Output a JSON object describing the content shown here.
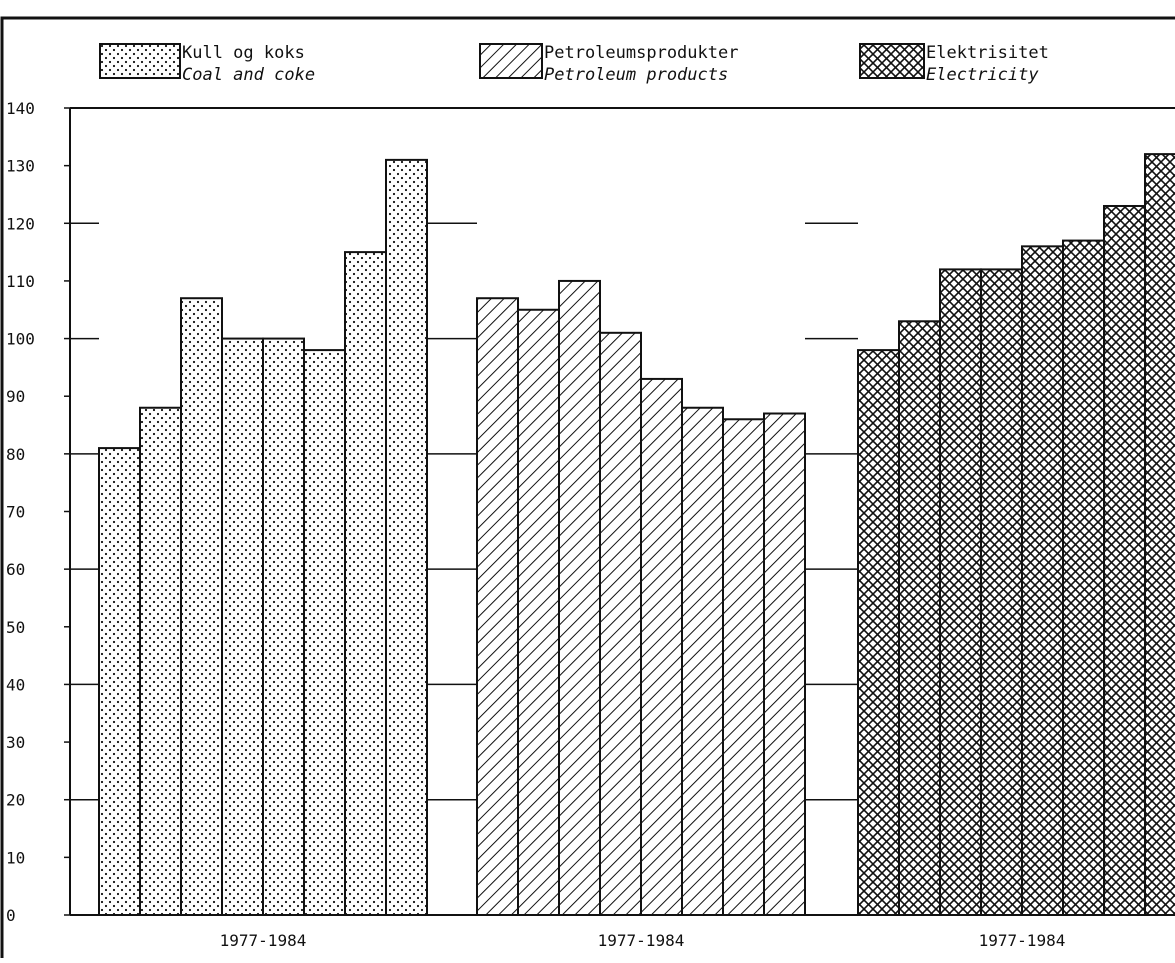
{
  "chart_data": {
    "type": "bar",
    "ylim": [
      0,
      140
    ],
    "yticks": [
      "0",
      "10",
      "20",
      "30",
      "40",
      "50",
      "60",
      "70",
      "80",
      "90",
      "100",
      "110",
      "120",
      "130",
      "140"
    ],
    "gridlines": [
      20,
      40,
      60,
      80,
      100,
      120
    ],
    "grid": "horizontal, partial",
    "legend_placement": "top",
    "groups": [
      {
        "label": "1977-1984",
        "series": "Kull og koks / Coal and coke",
        "pattern": "dots",
        "values": [
          81,
          88,
          107,
          100,
          100,
          98,
          115,
          131
        ]
      },
      {
        "label": "1977-1984",
        "series": "Petroleumsprodukter / Petroleum products",
        "pattern": "hatch",
        "values": [
          107,
          105,
          110,
          101,
          93,
          88,
          86,
          87
        ]
      },
      {
        "label": "1977-1984",
        "series": "Elektrisitet / Electricity",
        "pattern": "crosshatch",
        "values": [
          98,
          103,
          112,
          112,
          116,
          117,
          123,
          132
        ]
      }
    ],
    "legend": [
      {
        "name": "Kull og koks",
        "name_en": "Coal and coke",
        "pattern": "dots"
      },
      {
        "name": "Petroleumsprodukter",
        "name_en": "Petroleum products",
        "pattern": "hatch"
      },
      {
        "name": "Elektrisitet",
        "name_en": "Electricity",
        "pattern": "crosshatch"
      }
    ]
  }
}
